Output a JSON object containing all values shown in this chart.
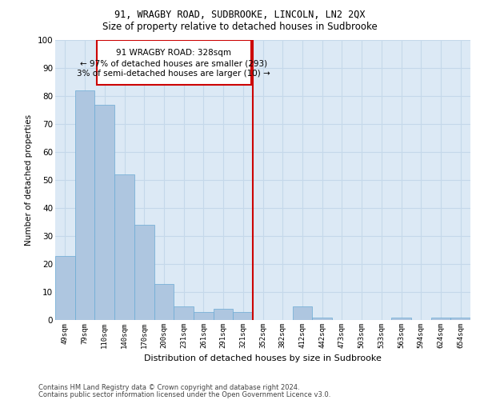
{
  "title1": "91, WRAGBY ROAD, SUDBROOKE, LINCOLN, LN2 2QX",
  "title2": "Size of property relative to detached houses in Sudbrooke",
  "xlabel": "Distribution of detached houses by size in Sudbrooke",
  "ylabel": "Number of detached properties",
  "footer1": "Contains HM Land Registry data © Crown copyright and database right 2024.",
  "footer2": "Contains public sector information licensed under the Open Government Licence v3.0.",
  "categories": [
    "49sqm",
    "79sqm",
    "110sqm",
    "140sqm",
    "170sqm",
    "200sqm",
    "231sqm",
    "261sqm",
    "291sqm",
    "321sqm",
    "352sqm",
    "382sqm",
    "412sqm",
    "442sqm",
    "473sqm",
    "503sqm",
    "533sqm",
    "563sqm",
    "594sqm",
    "624sqm",
    "654sqm"
  ],
  "values": [
    23,
    82,
    77,
    52,
    34,
    13,
    5,
    3,
    4,
    3,
    0,
    0,
    5,
    1,
    0,
    0,
    0,
    1,
    0,
    1,
    1
  ],
  "bar_color": "#aec6e0",
  "bar_edge_color": "#6aaad4",
  "grid_color": "#c5d8ea",
  "background_color": "#dce9f5",
  "annotation_line1": "91 WRAGBY ROAD: 328sqm",
  "annotation_line2": "← 97% of detached houses are smaller (293)",
  "annotation_line3": "3% of semi-detached houses are larger (10) →",
  "vline_index": 9.5,
  "vline_color": "#cc0000",
  "annotation_box_color": "#cc0000",
  "ylim": [
    0,
    100
  ],
  "yticks": [
    0,
    10,
    20,
    30,
    40,
    50,
    60,
    70,
    80,
    90,
    100
  ]
}
